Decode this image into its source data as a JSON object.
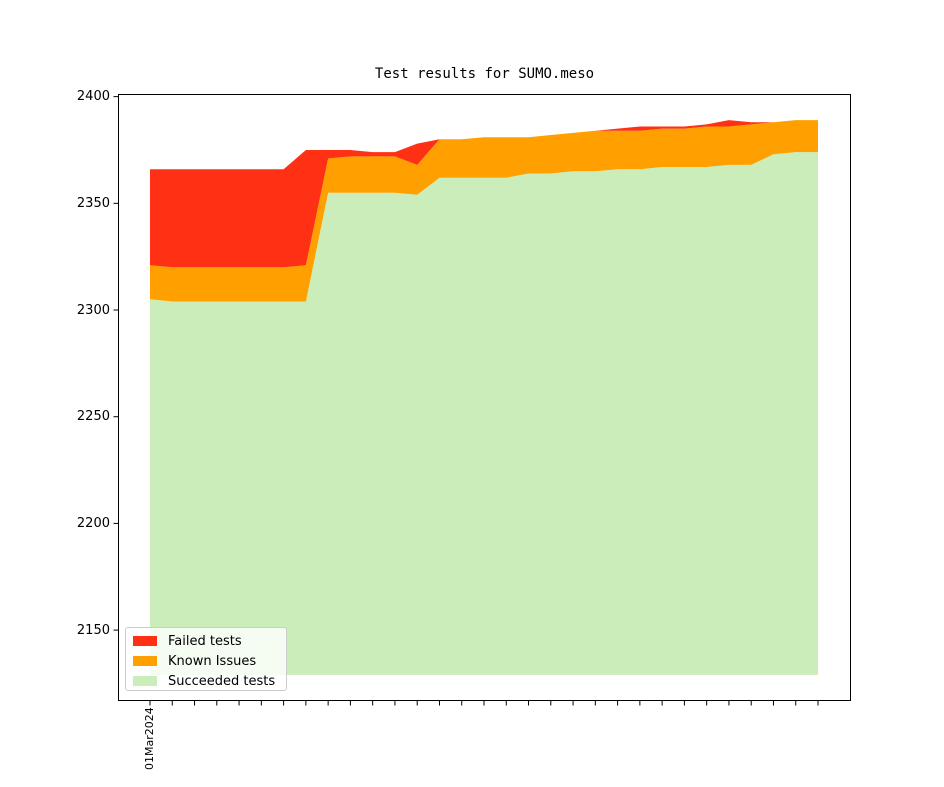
{
  "figure": {
    "title": "Test results for SUMO.meso"
  },
  "chart_data": {
    "type": "area",
    "stacked": true,
    "title": "Test results for SUMO.meso",
    "grid": false,
    "legend_position": "lower-left",
    "ylim": [
      2117,
      2401
    ],
    "baseline": 2129,
    "yticks": [
      2150,
      2200,
      2250,
      2300,
      2350,
      2400
    ],
    "x_tick_count": 31,
    "x_first_label": "01Mar2024",
    "x_note": "daily test runs starting 01Mar2024, only first tick labeled",
    "series": [
      {
        "name": "Succeeded tests",
        "color": "#cbedba",
        "role": "absolute",
        "values": [
          2305,
          2304,
          2304,
          2304,
          2304,
          2304,
          2304,
          2304,
          2355,
          2355,
          2355,
          2355,
          2354,
          2362,
          2362,
          2362,
          2362,
          2364,
          2364,
          2365,
          2365,
          2366,
          2366,
          2367,
          2367,
          2367,
          2368,
          2368,
          2373,
          2374,
          2374
        ]
      },
      {
        "name": "Known Issues",
        "color": "#ffa000",
        "role": "increment",
        "values": [
          16,
          16,
          16,
          16,
          16,
          16,
          16,
          17,
          16,
          17,
          17,
          17,
          14,
          18,
          18,
          19,
          19,
          17,
          18,
          18,
          19,
          18,
          18,
          18,
          18,
          19,
          18,
          19,
          15,
          15,
          15
        ]
      },
      {
        "name": "Failed tests",
        "color": "#ff3014",
        "role": "increment",
        "values": [
          45,
          46,
          46,
          46,
          46,
          46,
          46,
          54,
          4,
          3,
          2,
          2,
          10,
          0,
          0,
          0,
          0,
          0,
          0,
          0,
          0,
          1,
          2,
          1,
          1,
          1,
          3,
          1,
          0,
          0,
          0
        ]
      }
    ]
  },
  "legend": {
    "items": [
      {
        "label": "Failed tests",
        "color": "#ff3014"
      },
      {
        "label": "Known Issues",
        "color": "#ffa000"
      },
      {
        "label": "Succeeded tests",
        "color": "#cbedba"
      }
    ]
  }
}
